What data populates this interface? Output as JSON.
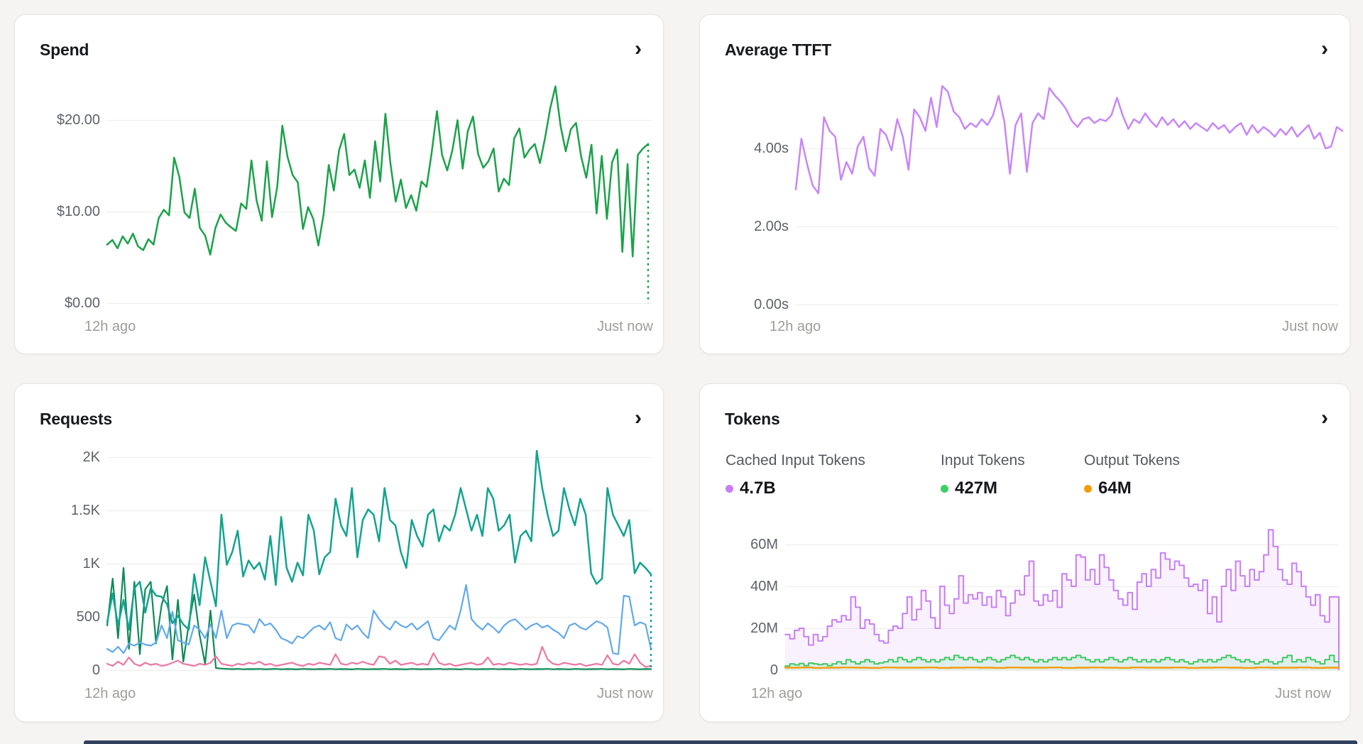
{
  "icons": {
    "chevron_right": "›"
  },
  "cards": [
    {
      "title": "Spend",
      "yticks": [
        "$20.00",
        "$10.00",
        "$0.00"
      ],
      "xticks": [
        "12h ago",
        "Just now"
      ]
    },
    {
      "title": "Average TTFT",
      "yticks": [
        "4.00s",
        "2.00s",
        "0.00s"
      ],
      "xticks": [
        "12h ago",
        "Just now"
      ]
    },
    {
      "title": "Requests",
      "yticks": [
        "2K",
        "1.5K",
        "1K",
        "500",
        "0"
      ],
      "xticks": [
        "12h ago",
        "Just now"
      ]
    },
    {
      "title": "Tokens",
      "yticks": [
        "60M",
        "40M",
        "20M",
        "0"
      ],
      "xticks": [
        "12h ago",
        "Just now"
      ],
      "legend": [
        {
          "label": "Cached Input Tokens",
          "value": "4.7B",
          "color": "#c77df5"
        },
        {
          "label": "Input Tokens",
          "value": "427M",
          "color": "#3ecf64"
        },
        {
          "label": "Output Tokens",
          "value": "64M",
          "color": "#f59c0b"
        }
      ]
    }
  ],
  "chart_data": [
    {
      "id": "spend",
      "type": "line",
      "title": "Spend",
      "xlabel": "",
      "ylabel": "USD",
      "x_range": [
        "12h ago",
        "Just now"
      ],
      "ylim": [
        0,
        28.4
      ],
      "grid": true,
      "series": [
        {
          "name": "spend_usd",
          "color": "#1aa24a",
          "width": 2.5,
          "end_drop": "dashed",
          "values": [
            6.4,
            6.9,
            6.0,
            7.3,
            6.5,
            7.6,
            6.2,
            5.8,
            7.0,
            6.4,
            9.3,
            10.2,
            9.6,
            15.9,
            13.8,
            9.9,
            9.3,
            12.5,
            8.2,
            7.4,
            5.3,
            8.2,
            9.7,
            8.8,
            8.3,
            7.9,
            10.9,
            10.3,
            15.6,
            11.2,
            9.0,
            15.5,
            9.4,
            12.7,
            19.4,
            16.0,
            14.0,
            13.2,
            8.1,
            10.5,
            9.2,
            6.3,
            9.7,
            15.1,
            12.3,
            16.7,
            18.5,
            14.0,
            14.6,
            12.6,
            15.6,
            11.5,
            17.7,
            13.3,
            20.7,
            15.2,
            11.1,
            13.5,
            10.4,
            11.8,
            10.1,
            13.3,
            12.7,
            16.5,
            21.0,
            16.2,
            14.5,
            16.7,
            20.0,
            14.7,
            18.8,
            20.4,
            16.3,
            14.8,
            15.5,
            16.9,
            12.2,
            13.6,
            12.9,
            18.0,
            19.1,
            15.9,
            16.8,
            17.4,
            15.3,
            18.1,
            21.3,
            23.7,
            19.4,
            16.6,
            19.0,
            19.7,
            16.0,
            13.7,
            17.3,
            9.8,
            16.1,
            9.2,
            15.4,
            16.8,
            5.6,
            15.2,
            5.1,
            16.2,
            16.9,
            17.4
          ]
        }
      ]
    },
    {
      "id": "ttft",
      "type": "line",
      "title": "Average TTFT",
      "xlabel": "",
      "ylabel": "seconds",
      "x_range": [
        "12h ago",
        "Just now"
      ],
      "ylim": [
        0,
        6.33
      ],
      "grid": true,
      "series": [
        {
          "name": "avg_ttft_s",
          "color": "#c886f8",
          "width": 2.5,
          "values": [
            2.95,
            4.25,
            3.6,
            3.05,
            2.85,
            4.8,
            4.45,
            4.3,
            3.2,
            3.65,
            3.35,
            4.05,
            4.3,
            3.5,
            3.3,
            4.5,
            4.35,
            3.95,
            4.75,
            4.3,
            3.45,
            5.0,
            4.8,
            4.45,
            5.3,
            4.55,
            5.6,
            5.45,
            4.95,
            4.8,
            4.5,
            4.65,
            4.55,
            4.75,
            4.6,
            4.85,
            5.35,
            4.7,
            3.35,
            4.6,
            4.9,
            3.4,
            4.65,
            4.9,
            4.75,
            5.55,
            5.35,
            5.2,
            5.0,
            4.7,
            4.55,
            4.75,
            4.8,
            4.65,
            4.75,
            4.7,
            4.85,
            5.3,
            4.85,
            4.5,
            4.75,
            4.65,
            4.9,
            4.7,
            4.55,
            4.8,
            4.6,
            4.75,
            4.55,
            4.7,
            4.5,
            4.65,
            4.55,
            4.45,
            4.65,
            4.5,
            4.6,
            4.4,
            4.55,
            4.65,
            4.35,
            4.6,
            4.4,
            4.55,
            4.45,
            4.3,
            4.5,
            4.35,
            4.55,
            4.3,
            4.45,
            4.6,
            4.25,
            4.4,
            4.0,
            4.05,
            4.55,
            4.45
          ]
        }
      ]
    },
    {
      "id": "requests",
      "type": "line",
      "title": "Requests",
      "xlabel": "",
      "ylabel": "requests",
      "x_range": [
        "12h ago",
        "Just now"
      ],
      "ylim": [
        0,
        2287
      ],
      "grid": true,
      "series": [
        {
          "name": "series_dark_green",
          "color": "#0e8a57",
          "width": 2.2,
          "values": [
            420,
            860,
            300,
            960,
            200,
            830,
            150,
            760,
            830,
            250,
            610,
            790,
            100,
            660,
            80,
            430,
            710,
            330,
            60,
            560,
            20,
            15,
            12,
            10,
            12,
            9,
            11,
            10,
            12,
            9,
            10,
            12,
            9,
            11,
            10,
            8,
            12,
            10,
            9,
            11,
            10,
            12,
            9,
            11,
            10,
            8,
            12,
            10,
            9,
            11,
            10,
            12,
            9,
            11,
            10,
            8,
            12,
            10,
            9,
            11,
            10,
            12,
            9,
            11,
            10,
            8,
            12,
            10,
            9,
            11,
            10,
            12,
            9,
            11,
            10,
            8,
            12,
            10,
            9,
            11,
            10,
            12,
            9,
            11,
            10,
            8,
            12,
            10,
            9,
            11,
            10,
            12,
            9,
            11,
            10,
            8,
            12,
            10,
            9,
            11,
            10
          ]
        },
        {
          "name": "series_pink",
          "color": "#ed77a3",
          "width": 2.2,
          "values": [
            60,
            40,
            80,
            50,
            120,
            60,
            40,
            70,
            50,
            60,
            40,
            50,
            70,
            90,
            60,
            50,
            40,
            60,
            50,
            70,
            130,
            60,
            50,
            40,
            60,
            50,
            70,
            60,
            80,
            50,
            60,
            40,
            50,
            60,
            70,
            50,
            40,
            60,
            50,
            70,
            60,
            50,
            150,
            60,
            50,
            70,
            60,
            80,
            60,
            50,
            130,
            120,
            60,
            90,
            50,
            60,
            70,
            50,
            60,
            50,
            160,
            70,
            50,
            60,
            40,
            50,
            60,
            70,
            50,
            60,
            120,
            50,
            60,
            50,
            70,
            60,
            50,
            60,
            50,
            60,
            220,
            100,
            60,
            50,
            70,
            60,
            50,
            60,
            40,
            50,
            60,
            50,
            140,
            60,
            50,
            90,
            60,
            150,
            70,
            30,
            40
          ]
        },
        {
          "name": "series_blue",
          "color": "#61a9eb",
          "width": 2.2,
          "values": [
            200,
            170,
            220,
            160,
            250,
            230,
            260,
            240,
            230,
            260,
            420,
            300,
            550,
            280,
            260,
            240,
            420,
            380,
            300,
            430,
            300,
            560,
            300,
            420,
            440,
            430,
            420,
            350,
            480,
            420,
            440,
            380,
            300,
            280,
            250,
            320,
            300,
            350,
            400,
            420,
            380,
            450,
            300,
            280,
            430,
            380,
            420,
            350,
            300,
            560,
            480,
            420,
            380,
            460,
            420,
            400,
            440,
            380,
            420,
            460,
            300,
            280,
            350,
            420,
            380,
            560,
            800,
            480,
            420,
            380,
            440,
            400,
            350,
            420,
            460,
            480,
            430,
            380,
            420,
            440,
            400,
            420,
            380,
            350,
            300,
            420,
            440,
            400,
            380,
            420,
            460,
            440,
            400,
            160,
            150,
            700,
            690,
            420,
            450,
            430,
            200
          ]
        },
        {
          "name": "series_teal",
          "color": "#12a38f",
          "width": 2.5,
          "end_drop": "dashed",
          "values": [
            450,
            720,
            420,
            660,
            380,
            770,
            830,
            540,
            770,
            700,
            690,
            620,
            440,
            510,
            430,
            380,
            900,
            610,
            1060,
            830,
            600,
            1460,
            990,
            1110,
            1310,
            880,
            1030,
            950,
            1010,
            850,
            1260,
            800,
            1440,
            960,
            830,
            1010,
            890,
            1460,
            1310,
            900,
            1060,
            1110,
            1610,
            1360,
            1260,
            1710,
            1060,
            1410,
            1510,
            1460,
            1210,
            1710,
            1410,
            1360,
            1110,
            960,
            1410,
            1260,
            1160,
            1460,
            1510,
            1210,
            1360,
            1310,
            1460,
            1710,
            1510,
            1310,
            1460,
            1260,
            1710,
            1610,
            1310,
            1360,
            1460,
            1010,
            1260,
            1310,
            1210,
            2060,
            1710,
            1460,
            1260,
            1310,
            1710,
            1510,
            1360,
            1610,
            1460,
            910,
            810,
            860,
            1710,
            1460,
            1360,
            1260,
            1410,
            910,
            1010,
            960,
            900
          ]
        }
      ]
    },
    {
      "id": "tokens",
      "type": "step-area",
      "title": "Tokens",
      "xlabel": "",
      "ylabel": "tokens (M)",
      "x_range": [
        "12h ago",
        "Just now"
      ],
      "ylim": [
        0,
        84
      ],
      "grid": true,
      "totals": {
        "cached_input_tokens": "4.7B",
        "input_tokens": "427M",
        "output_tokens": "64M"
      },
      "series": [
        {
          "name": "cached_input_tokens",
          "color": "#c77df5",
          "width": 2,
          "fill": "rgba(199,125,245,0.11)",
          "end_drop": "solid",
          "values": [
            17,
            15,
            19,
            20,
            16,
            12,
            17,
            14,
            16,
            21,
            24,
            23,
            26,
            24,
            35,
            30,
            20,
            24,
            22,
            17,
            14,
            13,
            19,
            21,
            20,
            27,
            35,
            24,
            29,
            38,
            33,
            25,
            20,
            40,
            31,
            27,
            34,
            45,
            32,
            36,
            34,
            37,
            31,
            35,
            30,
            38,
            35,
            26,
            32,
            38,
            36,
            45,
            52,
            33,
            31,
            36,
            33,
            38,
            30,
            46,
            43,
            40,
            55,
            54,
            43,
            48,
            41,
            55,
            49,
            43,
            38,
            34,
            31,
            37,
            29,
            42,
            46,
            40,
            48,
            44,
            56,
            53,
            48,
            52,
            50,
            44,
            40,
            41,
            38,
            43,
            27,
            35,
            23,
            40,
            48,
            38,
            52,
            45,
            40,
            48,
            43,
            47,
            55,
            67,
            59,
            48,
            43,
            41,
            51,
            47,
            40,
            35,
            31,
            36,
            26,
            23,
            35,
            35
          ]
        },
        {
          "name": "input_tokens",
          "color": "#3fca5f",
          "width": 2,
          "fill": "rgba(74,222,128,0.14)",
          "values": [
            2,
            3,
            2.5,
            3.2,
            2.2,
            3.4,
            3,
            2.6,
            3,
            2.2,
            3,
            4,
            3,
            5,
            4,
            3,
            4,
            5,
            4,
            3,
            3.5,
            4,
            5,
            4,
            6,
            5,
            4,
            5,
            6,
            5,
            4,
            5,
            4,
            5,
            6,
            5,
            7,
            6,
            5,
            6,
            5,
            4,
            5,
            6,
            5,
            4,
            5,
            6,
            7,
            6,
            5,
            6,
            5,
            4,
            5,
            4,
            5,
            6,
            5,
            6,
            5,
            6,
            7,
            6,
            5,
            4,
            5,
            4,
            5,
            6,
            5,
            4,
            5,
            6,
            5,
            4,
            5,
            4,
            5,
            4,
            5,
            6,
            5,
            4,
            5,
            4,
            3,
            4,
            5,
            4,
            5,
            4,
            5,
            6,
            7,
            6,
            5,
            4,
            5,
            4,
            3,
            4,
            5,
            4,
            3,
            4,
            6,
            7,
            4,
            5,
            4,
            6,
            5,
            4,
            3,
            5,
            7,
            4
          ]
        },
        {
          "name": "output_tokens",
          "color": "#f59c0b",
          "width": 2.4,
          "values": [
            1.2,
            1.3,
            1.1,
            1.2,
            1.3,
            1.2,
            1.1,
            1.3,
            1.2,
            1.2,
            1.3,
            1.1,
            1.2,
            1.3,
            1.2,
            1.1,
            1.3,
            1.2,
            1.2,
            1.3,
            1.1,
            1.2,
            1.3,
            1.2,
            1.1,
            1.3,
            1.2,
            1.2,
            1.3,
            1.1,
            1.2,
            1.3,
            1.2,
            1.1,
            1.3,
            1.2,
            1.2,
            1.3,
            1.1,
            1.2
          ]
        }
      ]
    }
  ]
}
